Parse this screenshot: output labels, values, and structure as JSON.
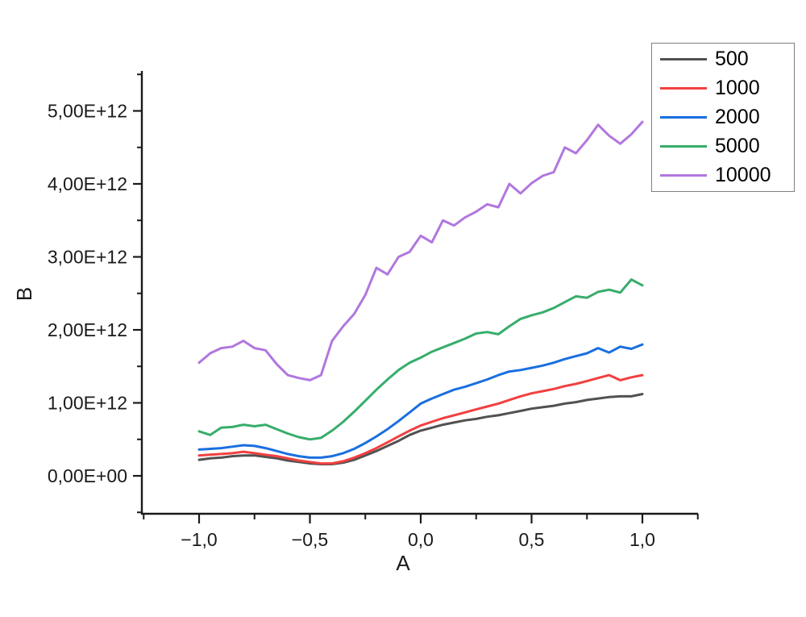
{
  "chart_data": {
    "type": "line",
    "title": "",
    "xlabel": "A",
    "ylabel": "B",
    "value_scale": "1e12",
    "xlim": [
      -1.26,
      1.24
    ],
    "ylim_e12": [
      -0.52,
      5.55
    ],
    "grid": false,
    "legend_position": "top-right",
    "x_ticks": {
      "values": [
        -1.0,
        -0.5,
        0.0,
        0.5,
        1.0
      ],
      "labels": [
        "−1,0",
        "−0,5",
        "0,0",
        "0,5",
        "1,0"
      ],
      "minor_values": [
        -1.25,
        -0.75,
        -0.25,
        0.25,
        0.75,
        1.25
      ]
    },
    "y_ticks": {
      "values_e12": [
        0,
        1,
        2,
        3,
        4,
        5
      ],
      "labels": [
        "0,00E+00",
        "1,00E+12",
        "2,00E+12",
        "3,00E+12",
        "4,00E+12",
        "5,00E+12"
      ],
      "minor_values_e12": [
        -0.5,
        0.5,
        1.5,
        2.5,
        3.5,
        4.5,
        5.5
      ]
    },
    "x": [
      -1.0,
      -0.95,
      -0.9,
      -0.85,
      -0.8,
      -0.75,
      -0.7,
      -0.65,
      -0.6,
      -0.55,
      -0.5,
      -0.45,
      -0.4,
      -0.35,
      -0.3,
      -0.25,
      -0.2,
      -0.15,
      -0.1,
      -0.05,
      0.0,
      0.05,
      0.1,
      0.15,
      0.2,
      0.25,
      0.3,
      0.35,
      0.4,
      0.45,
      0.5,
      0.55,
      0.6,
      0.65,
      0.7,
      0.75,
      0.8,
      0.85,
      0.9,
      0.95,
      1.0
    ],
    "series": [
      {
        "name": "500",
        "color": "#515151",
        "values_e12": [
          0.22,
          0.24,
          0.25,
          0.27,
          0.28,
          0.28,
          0.26,
          0.24,
          0.21,
          0.19,
          0.17,
          0.16,
          0.16,
          0.18,
          0.22,
          0.28,
          0.34,
          0.41,
          0.48,
          0.56,
          0.62,
          0.66,
          0.7,
          0.73,
          0.76,
          0.78,
          0.81,
          0.83,
          0.86,
          0.89,
          0.92,
          0.94,
          0.96,
          0.99,
          1.01,
          1.04,
          1.06,
          1.08,
          1.09,
          1.09,
          1.12
        ]
      },
      {
        "name": "1000",
        "color": "#F14040",
        "values_e12": [
          0.28,
          0.29,
          0.3,
          0.31,
          0.33,
          0.31,
          0.29,
          0.27,
          0.24,
          0.21,
          0.19,
          0.17,
          0.17,
          0.2,
          0.25,
          0.31,
          0.38,
          0.46,
          0.54,
          0.62,
          0.69,
          0.74,
          0.79,
          0.83,
          0.87,
          0.91,
          0.95,
          0.99,
          1.04,
          1.09,
          1.13,
          1.16,
          1.19,
          1.23,
          1.26,
          1.3,
          1.34,
          1.38,
          1.31,
          1.35,
          1.38
        ]
      },
      {
        "name": "2000",
        "color": "#1A6FDF",
        "values_e12": [
          0.36,
          0.37,
          0.38,
          0.4,
          0.42,
          0.41,
          0.38,
          0.34,
          0.3,
          0.27,
          0.25,
          0.25,
          0.27,
          0.31,
          0.37,
          0.45,
          0.54,
          0.64,
          0.75,
          0.87,
          0.99,
          1.06,
          1.12,
          1.18,
          1.22,
          1.27,
          1.32,
          1.38,
          1.43,
          1.45,
          1.48,
          1.51,
          1.55,
          1.6,
          1.64,
          1.68,
          1.75,
          1.69,
          1.77,
          1.74,
          1.8
        ]
      },
      {
        "name": "5000",
        "color": "#37AD6B",
        "values_e12": [
          0.61,
          0.56,
          0.66,
          0.67,
          0.7,
          0.68,
          0.7,
          0.64,
          0.58,
          0.53,
          0.5,
          0.52,
          0.62,
          0.74,
          0.88,
          1.03,
          1.18,
          1.32,
          1.45,
          1.55,
          1.62,
          1.7,
          1.76,
          1.82,
          1.88,
          1.95,
          1.97,
          1.94,
          2.05,
          2.15,
          2.2,
          2.24,
          2.3,
          2.38,
          2.46,
          2.44,
          2.52,
          2.55,
          2.51,
          2.69,
          2.61
        ]
      },
      {
        "name": "10000",
        "color": "#B177DE",
        "values_e12": [
          1.55,
          1.68,
          1.75,
          1.77,
          1.85,
          1.75,
          1.72,
          1.53,
          1.38,
          1.34,
          1.31,
          1.38,
          1.85,
          2.05,
          2.22,
          2.48,
          2.85,
          2.76,
          3.0,
          3.07,
          3.29,
          3.2,
          3.5,
          3.43,
          3.54,
          3.62,
          3.72,
          3.68,
          4.0,
          3.87,
          4.01,
          4.11,
          4.16,
          4.5,
          4.42,
          4.6,
          4.81,
          4.66,
          4.55,
          4.68,
          4.85
        ]
      }
    ]
  }
}
